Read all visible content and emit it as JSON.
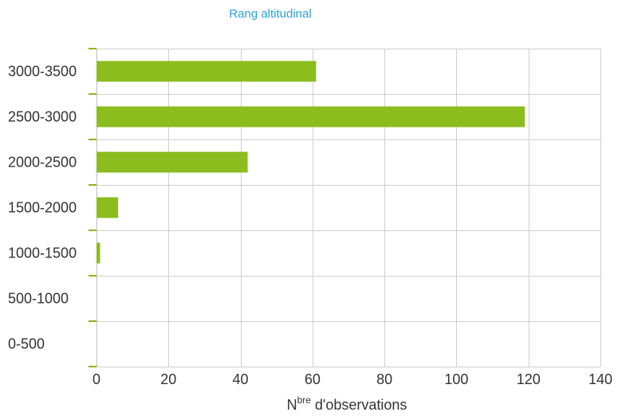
{
  "chart_data": {
    "type": "bar",
    "orientation": "horizontal",
    "title": "Rang altitudinal",
    "xlabel": {
      "prefix": "N",
      "superscript": "bre",
      "suffix": " d'observations"
    },
    "categories": [
      "3000-3500",
      "2500-3000",
      "2000-2500",
      "1500-2000",
      "1000-1500",
      "500-1000",
      "0-500"
    ],
    "values": [
      61,
      119,
      42,
      6,
      1,
      0,
      0
    ],
    "xlim": [
      0,
      140
    ],
    "xticks": [
      0,
      20,
      40,
      60,
      80,
      100,
      120,
      140
    ],
    "grid": true,
    "bar_color": "#8bbd1e",
    "title_color": "#2aa3d8"
  }
}
